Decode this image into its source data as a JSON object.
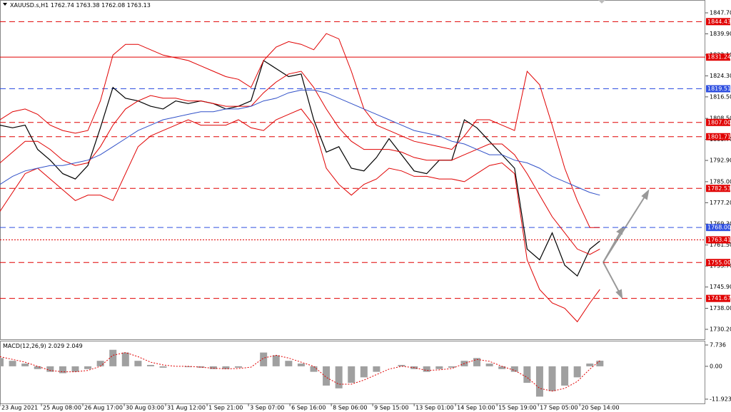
{
  "chart_data": [
    {
      "type": "line",
      "symbol": "XAUUSD.s,H1",
      "ohlc": [
        1762.74,
        1763.38,
        1762.08,
        1763.13
      ],
      "x": [
        0,
        10,
        20,
        30,
        40,
        50,
        60,
        70,
        80,
        90,
        100,
        110,
        120,
        130,
        140,
        150,
        160,
        170,
        180,
        190,
        200,
        210,
        220,
        230,
        240,
        250,
        260,
        270,
        280,
        290,
        300,
        310,
        320,
        330,
        340,
        350,
        360,
        370,
        380,
        390,
        400,
        410,
        420,
        430,
        440,
        450,
        460,
        470,
        478
      ],
      "series": [
        {
          "color": "#000000",
          "values": [
            1806,
            1805,
            1806,
            1797,
            1793,
            1788,
            1786,
            1791,
            1805,
            1820,
            1816,
            1815,
            1813,
            1812,
            1815,
            1814,
            1815,
            1814,
            1812,
            1813,
            1815,
            1830,
            1827,
            1824,
            1825,
            1808,
            1796,
            1798,
            1790,
            1789,
            1794,
            1801,
            1795,
            1789,
            1788,
            1793,
            1793,
            1808,
            1805,
            1800,
            1795,
            1790,
            1760,
            1756,
            1766,
            1754,
            1750,
            1760,
            1763
          ]
        },
        {
          "color": "#e00000",
          "values": [
            1808,
            1811,
            1812,
            1810,
            1806,
            1804,
            1803,
            1804,
            1815,
            1832,
            1836,
            1836,
            1834,
            1832,
            1831,
            1830,
            1828,
            1826,
            1824,
            1823,
            1820,
            1830,
            1835,
            1837,
            1836,
            1834,
            1840,
            1838,
            1826,
            1812,
            1806,
            1804,
            1802,
            1800,
            1799,
            1798,
            1797,
            1802,
            1808,
            1808,
            1806,
            1804,
            1826,
            1821,
            1806,
            1790,
            1778,
            1768,
            1768
          ]
        },
        {
          "color": "#e00000",
          "values": [
            1792,
            1796,
            1800,
            1800,
            1797,
            1793,
            1791,
            1792,
            1798,
            1806,
            1812,
            1815,
            1817,
            1816,
            1816,
            1815,
            1815,
            1814,
            1813,
            1813,
            1813,
            1818,
            1822,
            1825,
            1826,
            1820,
            1812,
            1805,
            1800,
            1797,
            1797,
            1797,
            1796,
            1794,
            1793,
            1793,
            1793,
            1795,
            1797,
            1799,
            1799,
            1795,
            1788,
            1780,
            1772,
            1766,
            1760,
            1758,
            1760
          ]
        },
        {
          "color": "#e00000",
          "values": [
            1774,
            1781,
            1788,
            1790,
            1786,
            1782,
            1778,
            1780,
            1780,
            1778,
            1788,
            1798,
            1802,
            1804,
            1806,
            1808,
            1806,
            1806,
            1806,
            1808,
            1805,
            1804,
            1808,
            1810,
            1812,
            1806,
            1790,
            1784,
            1780,
            1784,
            1786,
            1790,
            1789,
            1787,
            1787,
            1786,
            1786,
            1785,
            1788,
            1791,
            1792,
            1788,
            1756,
            1745,
            1740,
            1738,
            1733,
            1740,
            1745
          ]
        },
        {
          "color": "#3050c8",
          "values": [
            1784,
            1787,
            1789,
            1790,
            1791,
            1791,
            1792,
            1793,
            1795,
            1798,
            1801,
            1804,
            1806,
            1808,
            1809,
            1810,
            1811,
            1811,
            1812,
            1812,
            1813,
            1815,
            1816,
            1818,
            1819,
            1819,
            1818,
            1816,
            1814,
            1812,
            1810,
            1808,
            1806,
            1804,
            1803,
            1802,
            1800,
            1799,
            1797,
            1795,
            1795,
            1793,
            1792,
            1790,
            1787,
            1785,
            1783,
            1781,
            1780
          ]
        }
      ],
      "levels": [
        {
          "value": 1844.43,
          "label": "1844.43",
          "color": "#e00000",
          "style": "dashed"
        },
        {
          "value": 1831.24,
          "label": "1831.24",
          "color": "#e00000",
          "style": "solid"
        },
        {
          "value": 1819.51,
          "label": "1819.51",
          "color": "#3050e0",
          "style": "dashed"
        },
        {
          "value": 1807,
          "label": "1807.00",
          "color": "#e00000",
          "style": "dashed"
        },
        {
          "value": 1801.71,
          "label": "1801.71",
          "color": "#e00000",
          "style": "dashed"
        },
        {
          "value": 1782.53,
          "label": "1782.53",
          "color": "#e00000",
          "style": "dashed"
        },
        {
          "value": 1768,
          "label": "1768.00",
          "color": "#3050e0",
          "style": "dashed"
        },
        {
          "value": 1763.41,
          "label": "1763.41",
          "color": "#e00000",
          "style": "dotted"
        },
        {
          "value": 1755,
          "label": "1755.00",
          "color": "#e00000",
          "style": "dashed"
        },
        {
          "value": 1741.67,
          "label": "1741.67",
          "color": "#e00000",
          "style": "dashed"
        }
      ],
      "xlim": [
        0,
        562
      ],
      "xticks": [
        {
          "value": 0,
          "label": "23 Aug 2021"
        },
        {
          "value": 33,
          "label": "25 Aug 08:00"
        },
        {
          "value": 66,
          "label": "26 Aug 17:00"
        },
        {
          "value": 99,
          "label": "30 Aug 03:00"
        },
        {
          "value": 132,
          "label": "31 Aug 12:00"
        },
        {
          "value": 165,
          "label": "1 Sep 21:00"
        },
        {
          "value": 198,
          "label": "3 Sep 07:00"
        },
        {
          "value": 231,
          "label": "6 Sep 16:00"
        },
        {
          "value": 264,
          "label": "8 Sep 06:00"
        },
        {
          "value": 297,
          "label": "9 Sep 15:00"
        },
        {
          "value": 330,
          "label": "13 Sep 01:00"
        },
        {
          "value": 363,
          "label": "14 Sep 10:00"
        },
        {
          "value": 396,
          "label": "15 Sep 19:00"
        },
        {
          "value": 429,
          "label": "17 Sep 05:00"
        },
        {
          "value": 462,
          "label": "20 Sep 14:00"
        }
      ],
      "ylim": [
        1726.23,
        1852.46
      ],
      "yticks": [
        {
          "value": 1847.7,
          "label": "1847.70"
        },
        {
          "value": 1839.9,
          "label": "1839.90"
        },
        {
          "value": 1832.1,
          "label": "1832.10"
        },
        {
          "value": 1824.3,
          "label": "1824.30"
        },
        {
          "value": 1816.5,
          "label": "1816.50"
        },
        {
          "value": 1808.5,
          "label": "1808.50"
        },
        {
          "value": 1800.7,
          "label": "1800.70"
        },
        {
          "value": 1792.9,
          "label": "1792.90"
        },
        {
          "value": 1785,
          "label": "1785.00"
        },
        {
          "value": 1777.2,
          "label": "1777.20"
        },
        {
          "value": 1769.3,
          "label": "1769.30"
        },
        {
          "value": 1761.5,
          "label": "1761.50"
        },
        {
          "value": 1753.7,
          "label": "1753.70"
        },
        {
          "value": 1745.9,
          "label": "1745.90"
        },
        {
          "value": 1738,
          "label": "1738.00"
        },
        {
          "value": 1730.2,
          "label": "1730.20"
        }
      ]
    },
    {
      "type": "bar",
      "title": "MACD(12,26,9)",
      "readout": [
        2.029,
        2.049
      ],
      "x": [
        0,
        10,
        20,
        30,
        40,
        50,
        60,
        70,
        80,
        90,
        100,
        110,
        120,
        130,
        140,
        150,
        160,
        170,
        180,
        190,
        200,
        210,
        220,
        230,
        240,
        250,
        260,
        270,
        280,
        290,
        300,
        310,
        320,
        330,
        340,
        350,
        360,
        370,
        380,
        390,
        400,
        410,
        420,
        430,
        440,
        450,
        460,
        470,
        478
      ],
      "values": [
        3,
        2,
        1,
        -1,
        -2,
        -2.5,
        -2,
        -1,
        2,
        6,
        5,
        2,
        0.5,
        -0.5,
        0,
        -0.3,
        -0.5,
        -1,
        -1,
        -0.5,
        0,
        5,
        4,
        2,
        1,
        -2,
        -7,
        -8,
        -6,
        -4,
        -2,
        0,
        0.5,
        -1,
        -2,
        -1,
        -0.5,
        2,
        3,
        1,
        -1,
        -2,
        -6,
        -11,
        -9,
        -7,
        -4,
        1,
        2.029
      ],
      "color": "#a0a0a0",
      "signal": {
        "color": "#e00000",
        "values": [
          3.5,
          2.5,
          1.5,
          0,
          -1.5,
          -2,
          -2,
          -1.5,
          0,
          4,
          5,
          3.5,
          1.5,
          0.5,
          0,
          0,
          -0.3,
          -0.7,
          -0.9,
          -0.8,
          -0.3,
          3,
          4,
          3,
          1.5,
          0,
          -4,
          -6.5,
          -6.5,
          -5,
          -3,
          -1,
          0,
          -0.5,
          -1.5,
          -1.3,
          -0.8,
          1,
          2.5,
          1.8,
          0,
          -1.5,
          -4,
          -8,
          -9,
          -8,
          -5.5,
          -1,
          2.049
        ]
      },
      "ylim": [
        -13.48,
        9.29
      ],
      "yticks": [
        7.736,
        {
          "value": 0,
          "label": "0.00"
        },
        -11.923
      ]
    }
  ]
}
